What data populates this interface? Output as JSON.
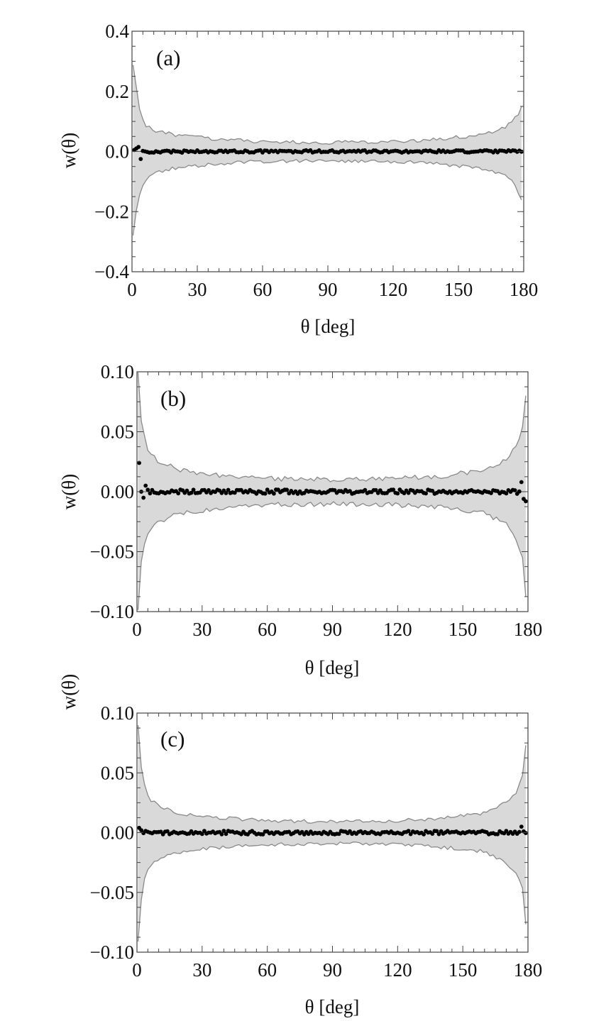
{
  "chart_data": [
    {
      "type": "scatter",
      "panel_label": "(a)",
      "xlabel": "θ [deg]",
      "ylabel": "w(θ)",
      "xlim": [
        0,
        180
      ],
      "ylim": [
        -0.4,
        0.4
      ],
      "xticks": [
        0,
        30,
        60,
        90,
        120,
        150,
        180
      ],
      "xtick_labels": [
        "0",
        "30",
        "60",
        "90",
        "120",
        "150",
        "180"
      ],
      "yticks": [
        -0.4,
        -0.2,
        0.0,
        0.2,
        0.4
      ],
      "ytick_labels": [
        "−0.4",
        "−0.2",
        "0.0",
        "0.2",
        "0.4"
      ],
      "band_envelope": {
        "x": [
          0.5,
          2,
          4,
          6,
          10,
          20,
          40,
          60,
          90,
          120,
          140,
          160,
          170,
          175,
          178,
          179.5
        ],
        "upper": [
          0.29,
          0.22,
          0.12,
          0.09,
          0.07,
          0.055,
          0.04,
          0.032,
          0.03,
          0.032,
          0.04,
          0.055,
          0.075,
          0.1,
          0.13,
          0.16
        ],
        "lower": [
          -0.28,
          -0.2,
          -0.13,
          -0.1,
          -0.07,
          -0.055,
          -0.04,
          -0.033,
          -0.03,
          -0.033,
          -0.04,
          -0.055,
          -0.075,
          -0.1,
          -0.14,
          -0.18
        ]
      },
      "band_jitter": 0.006,
      "scatter_noise": 0.004,
      "outliers": [
        {
          "x": 1,
          "y": 0.005
        },
        {
          "x": 2,
          "y": 0.01
        },
        {
          "x": 3,
          "y": 0.015
        },
        {
          "x": 4,
          "y": -0.025
        },
        {
          "x": 5,
          "y": 0.002
        }
      ],
      "band_color": "#d9d9d9",
      "band_edge_color": "#8a8a8a",
      "point_color": "#000000",
      "grid": false
    },
    {
      "type": "scatter",
      "panel_label": "(b)",
      "xlabel": "θ [deg]",
      "ylabel": "w(θ)",
      "xlim": [
        0,
        180
      ],
      "ylim": [
        -0.1,
        0.1
      ],
      "xticks": [
        0,
        30,
        60,
        90,
        120,
        150,
        180
      ],
      "xtick_labels": [
        "0",
        "30",
        "60",
        "90",
        "120",
        "150",
        "180"
      ],
      "yticks": [
        -0.1,
        -0.05,
        0.0,
        0.05,
        0.1
      ],
      "ytick_labels": [
        "−0.10",
        "−0.05",
        "0.00",
        "0.05",
        "0.10"
      ],
      "band_envelope": {
        "x": [
          0.5,
          2,
          4,
          6,
          10,
          20,
          40,
          60,
          90,
          120,
          140,
          160,
          170,
          175,
          178,
          179.5
        ],
        "upper": [
          0.1,
          0.06,
          0.04,
          0.032,
          0.025,
          0.018,
          0.013,
          0.011,
          0.01,
          0.011,
          0.013,
          0.018,
          0.027,
          0.04,
          0.055,
          0.09
        ],
        "lower": [
          -0.1,
          -0.06,
          -0.04,
          -0.032,
          -0.025,
          -0.018,
          -0.013,
          -0.011,
          -0.01,
          -0.011,
          -0.013,
          -0.018,
          -0.027,
          -0.04,
          -0.06,
          -0.1
        ]
      },
      "band_jitter": 0.002,
      "scatter_noise": 0.0018,
      "outliers": [
        {
          "x": 1,
          "y": 0.024
        },
        {
          "x": 2,
          "y": 0.0
        },
        {
          "x": 3,
          "y": -0.005
        },
        {
          "x": 4,
          "y": 0.005
        },
        {
          "x": 177,
          "y": 0.008
        },
        {
          "x": 178,
          "y": -0.006
        },
        {
          "x": 179,
          "y": -0.008
        }
      ],
      "band_color": "#d9d9d9",
      "band_edge_color": "#8a8a8a",
      "point_color": "#000000",
      "grid": false
    },
    {
      "type": "scatter",
      "panel_label": "(c)",
      "xlabel": "θ [deg]",
      "ylabel": "w(θ)",
      "xlim": [
        0,
        180
      ],
      "ylim": [
        -0.1,
        0.1
      ],
      "xticks": [
        0,
        30,
        60,
        90,
        120,
        150,
        180
      ],
      "xtick_labels": [
        "0",
        "30",
        "60",
        "90",
        "120",
        "150",
        "180"
      ],
      "yticks": [
        -0.1,
        -0.05,
        0.0,
        0.05,
        0.1
      ],
      "ytick_labels": [
        "−0.10",
        "−0.05",
        "0.00",
        "0.05",
        "0.10"
      ],
      "band_envelope": {
        "x": [
          0.5,
          2,
          4,
          6,
          10,
          20,
          40,
          60,
          90,
          120,
          140,
          160,
          170,
          175,
          178,
          179.5
        ],
        "upper": [
          0.09,
          0.055,
          0.035,
          0.028,
          0.022,
          0.016,
          0.012,
          0.01,
          0.009,
          0.01,
          0.012,
          0.016,
          0.025,
          0.035,
          0.05,
          0.085
        ],
        "lower": [
          -0.09,
          -0.055,
          -0.035,
          -0.028,
          -0.022,
          -0.016,
          -0.012,
          -0.01,
          -0.009,
          -0.01,
          -0.012,
          -0.016,
          -0.025,
          -0.035,
          -0.05,
          -0.09
        ]
      },
      "band_jitter": 0.0015,
      "scatter_noise": 0.0015,
      "outliers": [
        {
          "x": 1,
          "y": 0.004
        },
        {
          "x": 2,
          "y": 0.002
        },
        {
          "x": 177,
          "y": 0.005
        },
        {
          "x": 178,
          "y": 0.001
        }
      ],
      "band_color": "#d9d9d9",
      "band_edge_color": "#8a8a8a",
      "point_color": "#000000",
      "grid": false
    }
  ]
}
